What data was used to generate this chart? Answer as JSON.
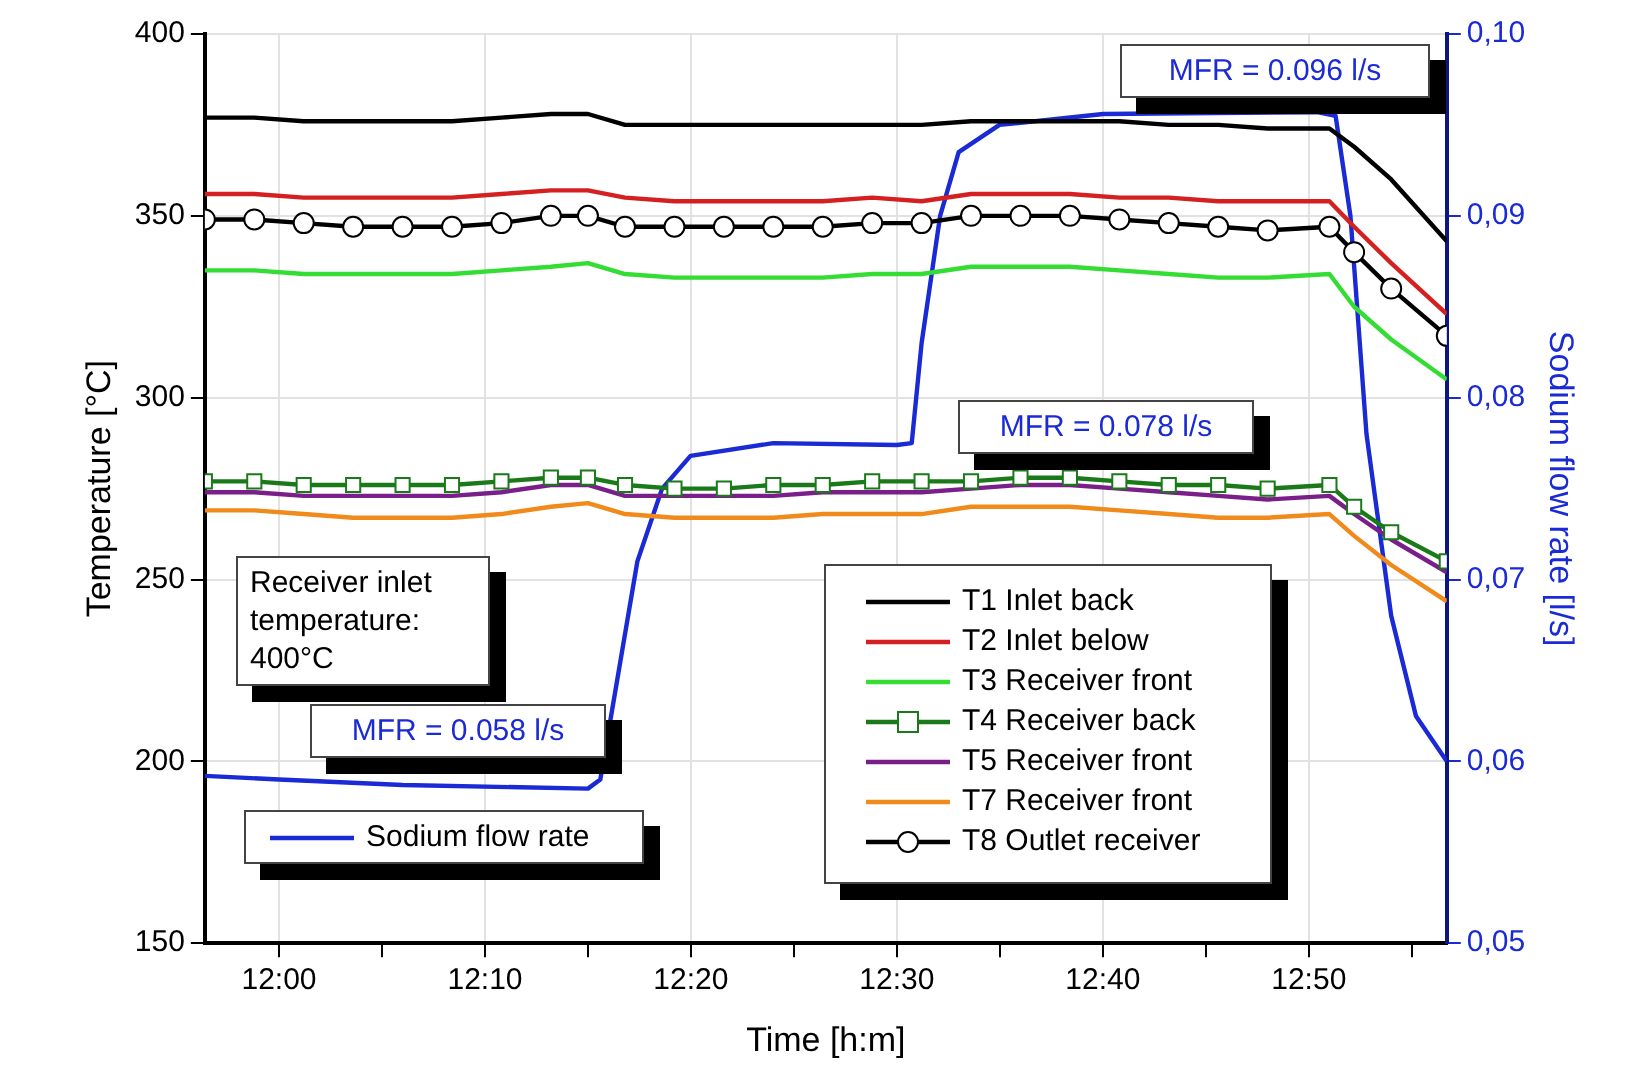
{
  "chart_data": {
    "type": "line",
    "xlabel": "Time [h:m]",
    "ylabel": "Temperature [°C]",
    "y2label": "Sodium flow rate [l/s]",
    "xlim": [
      11.94,
      12.945
    ],
    "xticks": [
      {
        "value": 12,
        "label": "12:00"
      },
      {
        "value": 12.0833,
        "label": null
      },
      {
        "value": 12.1667,
        "label": "12:10"
      },
      {
        "value": 12.25,
        "label": null
      },
      {
        "value": 12.3333,
        "label": "12:20"
      },
      {
        "value": 12.4167,
        "label": null
      },
      {
        "value": 12.5,
        "label": "12:30"
      },
      {
        "value": 12.5833,
        "label": null
      },
      {
        "value": 12.6667,
        "label": "12:40"
      },
      {
        "value": 12.75,
        "label": null
      },
      {
        "value": 12.8333,
        "label": "12:50"
      },
      {
        "value": 12.9167,
        "label": null
      }
    ],
    "ylim": [
      150,
      400
    ],
    "yticks": [
      150,
      200,
      250,
      300,
      350,
      400
    ],
    "y2lim": [
      0.05,
      0.1
    ],
    "y2ticks": [
      {
        "value": 0.05,
        "label": "0,05"
      },
      {
        "value": 0.06,
        "label": "0,06"
      },
      {
        "value": 0.07,
        "label": "0,07"
      },
      {
        "value": 0.08,
        "label": "0,08"
      },
      {
        "value": 0.09,
        "label": "0,09"
      },
      {
        "value": 0.1,
        "label": "0,10"
      }
    ],
    "grid": true,
    "legend": "bottom",
    "line_style": "solid",
    "x": [
      11.94,
      11.98,
      12.02,
      12.06,
      12.1,
      12.14,
      12.18,
      12.22,
      12.25,
      12.28,
      12.32,
      12.36,
      12.4,
      12.44,
      12.48,
      12.52,
      12.56,
      12.6,
      12.64,
      12.68,
      12.72,
      12.76,
      12.8,
      12.85,
      12.87,
      12.9,
      12.945
    ],
    "series": [
      {
        "name": "T1 Inlet back",
        "color": "#000000",
        "marker": "none",
        "values": [
          377,
          377,
          376,
          376,
          376,
          376,
          377,
          378,
          378,
          375,
          375,
          375,
          375,
          375,
          375,
          375,
          376,
          376,
          376,
          376,
          375,
          375,
          374,
          374,
          369,
          360,
          343
        ]
      },
      {
        "name": "T2 Inlet below",
        "color": "#d42020",
        "marker": "none",
        "values": [
          356,
          356,
          355,
          355,
          355,
          355,
          356,
          357,
          357,
          355,
          354,
          354,
          354,
          354,
          355,
          354,
          356,
          356,
          356,
          355,
          355,
          354,
          354,
          354,
          347,
          337,
          323
        ]
      },
      {
        "name": "T3 Receiver front",
        "color": "#33dd33",
        "marker": "none",
        "values": [
          335,
          335,
          334,
          334,
          334,
          334,
          335,
          336,
          337,
          334,
          333,
          333,
          333,
          333,
          334,
          334,
          336,
          336,
          336,
          335,
          334,
          333,
          333,
          334,
          325,
          316,
          305
        ]
      },
      {
        "name": "T4 Receiver back",
        "color": "#1a7a1a",
        "marker": "square",
        "values": [
          277,
          277,
          276,
          276,
          276,
          276,
          277,
          278,
          278,
          276,
          275,
          275,
          276,
          276,
          277,
          277,
          277,
          278,
          278,
          277,
          276,
          276,
          275,
          276,
          270,
          263,
          255
        ]
      },
      {
        "name": "T5 Receiver front",
        "color": "#7a1f8a",
        "marker": "none",
        "values": [
          274,
          274,
          273,
          273,
          273,
          273,
          274,
          276,
          276,
          273,
          273,
          273,
          273,
          274,
          274,
          274,
          275,
          276,
          276,
          275,
          274,
          273,
          272,
          273,
          268,
          261,
          252
        ]
      },
      {
        "name": "T7 Receiver front",
        "color": "#f08a1a",
        "marker": "none",
        "values": [
          269,
          269,
          268,
          267,
          267,
          267,
          268,
          270,
          271,
          268,
          267,
          267,
          267,
          268,
          268,
          268,
          270,
          270,
          270,
          269,
          268,
          267,
          267,
          268,
          262,
          254,
          244
        ]
      },
      {
        "name": "T8 Outlet receiver",
        "color": "#000000",
        "marker": "circle",
        "values": [
          349,
          349,
          348,
          347,
          347,
          347,
          348,
          350,
          350,
          347,
          347,
          347,
          347,
          347,
          348,
          348,
          350,
          350,
          350,
          349,
          348,
          347,
          346,
          347,
          340,
          330,
          317
        ]
      },
      {
        "name": "Sodium flow rate",
        "color": "#1a2ad4",
        "axis": "y2",
        "marker": "none",
        "x": [
          11.94,
          12.0,
          12.1,
          12.25,
          12.26,
          12.275,
          12.29,
          12.31,
          12.333,
          12.4,
          12.5,
          12.512,
          12.52,
          12.535,
          12.55,
          12.583,
          12.667,
          12.84,
          12.855,
          12.867,
          12.88,
          12.9,
          12.92,
          12.945
        ],
        "values": [
          0.0592,
          0.059,
          0.0587,
          0.0585,
          0.059,
          0.065,
          0.071,
          0.075,
          0.0768,
          0.0775,
          0.0774,
          0.0775,
          0.083,
          0.09,
          0.0935,
          0.095,
          0.0956,
          0.0957,
          0.0955,
          0.09,
          0.078,
          0.068,
          0.0625,
          0.06
        ]
      }
    ],
    "annotations": [
      "MFR = 0.096 l/s",
      "MFR = 0.078 l/s",
      "MFR = 0.058 l/s",
      "Receiver inlet temperature: 400°C"
    ]
  }
}
